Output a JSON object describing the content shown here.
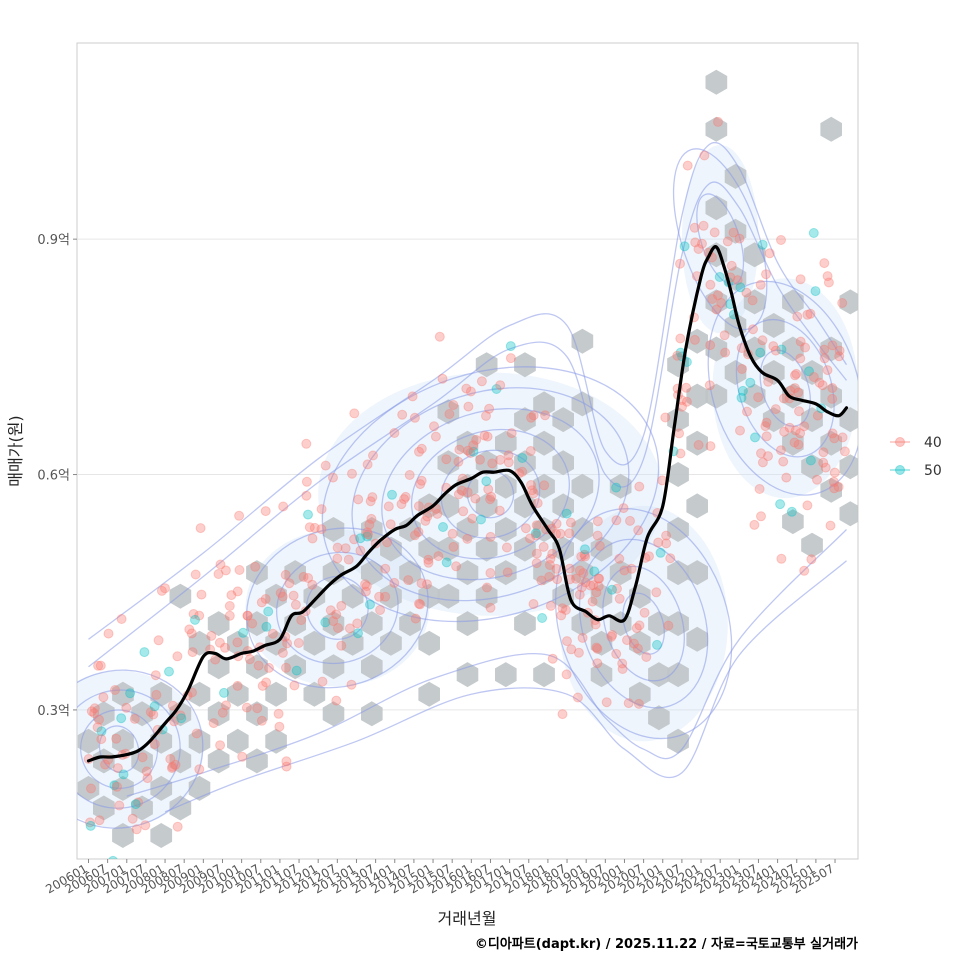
{
  "chart_data": {
    "type": "scatter",
    "layers": [
      "hexbin",
      "density-contour",
      "scatter-points",
      "moving-average-line"
    ],
    "xlabel": "거래년월",
    "ylabel": "매매가(원)",
    "caption": "©디아파트(dapt.kr) / 2025.11.22 / 자료=국토교통부 실거래가",
    "xlim": [
      2005.7,
      2026.1
    ],
    "ylim": [
      0.11,
      1.15
    ],
    "y_ticks": [
      {
        "value": 0.3,
        "label": "0.3억"
      },
      {
        "value": 0.6,
        "label": "0.6억"
      },
      {
        "value": 0.9,
        "label": "0.9억"
      }
    ],
    "x_ticks": [
      "200601",
      "200607",
      "200701",
      "200707",
      "200801",
      "200807",
      "200901",
      "200907",
      "201001",
      "201007",
      "201101",
      "201107",
      "201201",
      "201207",
      "201301",
      "201307",
      "201401",
      "201407",
      "201501",
      "201507",
      "201601",
      "201607",
      "201701",
      "201707",
      "201801",
      "201807",
      "201901",
      "201907",
      "202001",
      "202007",
      "202101",
      "202107",
      "202201",
      "202207",
      "202301",
      "202307",
      "202401",
      "202407",
      "202501",
      "202507"
    ],
    "grid": true,
    "legend": {
      "position": "right",
      "entries": [
        {
          "label": "40",
          "color": "#F8766D"
        },
        {
          "label": "50",
          "color": "#00BFC4"
        }
      ]
    },
    "colors": {
      "hex": "#bfc4c8",
      "contour": "#8899e8",
      "contour_fill": "#cfe2f6",
      "trend": "#000000",
      "series_40": "#F8766D",
      "series_50": "#00BFC4"
    },
    "trend_line": {
      "name": "moving average",
      "x": [
        2006.0,
        2006.3,
        2006.6,
        2007.0,
        2007.3,
        2007.6,
        2008.0,
        2008.3,
        2008.6,
        2009.0,
        2009.3,
        2009.6,
        2010.0,
        2010.3,
        2010.6,
        2011.0,
        2011.3,
        2011.6,
        2012.0,
        2012.3,
        2012.6,
        2013.0,
        2013.3,
        2013.6,
        2014.0,
        2014.3,
        2014.6,
        2015.0,
        2015.3,
        2015.6,
        2016.0,
        2016.3,
        2016.6,
        2017.0,
        2017.3,
        2017.6,
        2018.0,
        2018.3,
        2018.6,
        2019.0,
        2019.3,
        2019.6,
        2020.0,
        2020.3,
        2020.6,
        2021.0,
        2021.3,
        2021.6,
        2022.0,
        2022.2,
        2022.4,
        2022.6,
        2022.8,
        2023.0,
        2023.3,
        2023.6,
        2024.0,
        2024.3,
        2024.6,
        2025.0,
        2025.3,
        2025.6,
        2025.8
      ],
      "y": [
        0.235,
        0.24,
        0.24,
        0.243,
        0.248,
        0.26,
        0.283,
        0.3,
        0.325,
        0.368,
        0.372,
        0.365,
        0.372,
        0.375,
        0.382,
        0.39,
        0.42,
        0.425,
        0.445,
        0.46,
        0.472,
        0.483,
        0.5,
        0.515,
        0.53,
        0.535,
        0.548,
        0.56,
        0.575,
        0.587,
        0.595,
        0.603,
        0.603,
        0.605,
        0.59,
        0.56,
        0.53,
        0.505,
        0.44,
        0.425,
        0.415,
        0.42,
        0.415,
        0.46,
        0.52,
        0.56,
        0.66,
        0.76,
        0.852,
        0.878,
        0.89,
        0.865,
        0.83,
        0.79,
        0.75,
        0.73,
        0.72,
        0.7,
        0.695,
        0.69,
        0.68,
        0.675,
        0.685
      ]
    },
    "hexbins": [
      [
        2006.0,
        0.26
      ],
      [
        2006.0,
        0.2
      ],
      [
        2006.4,
        0.235
      ],
      [
        2006.4,
        0.175
      ],
      [
        2006.9,
        0.26
      ],
      [
        2006.9,
        0.2
      ],
      [
        2006.9,
        0.14
      ],
      [
        2007.4,
        0.235
      ],
      [
        2007.4,
        0.175
      ],
      [
        2007.9,
        0.26
      ],
      [
        2007.9,
        0.2
      ],
      [
        2007.9,
        0.14
      ],
      [
        2006.4,
        0.295
      ],
      [
        2006.9,
        0.32
      ],
      [
        2007.4,
        0.295
      ],
      [
        2007.9,
        0.32
      ],
      [
        2008.4,
        0.295
      ],
      [
        2008.4,
        0.235
      ],
      [
        2008.4,
        0.175
      ],
      [
        2008.9,
        0.26
      ],
      [
        2008.9,
        0.2
      ],
      [
        2008.4,
        0.445
      ],
      [
        2008.9,
        0.385
      ],
      [
        2008.9,
        0.32
      ],
      [
        2009.4,
        0.41
      ],
      [
        2009.4,
        0.355
      ],
      [
        2009.4,
        0.295
      ],
      [
        2009.4,
        0.235
      ],
      [
        2009.9,
        0.385
      ],
      [
        2009.9,
        0.32
      ],
      [
        2009.9,
        0.26
      ],
      [
        2010.4,
        0.475
      ],
      [
        2010.4,
        0.41
      ],
      [
        2010.4,
        0.355
      ],
      [
        2010.4,
        0.295
      ],
      [
        2010.4,
        0.235
      ],
      [
        2010.9,
        0.445
      ],
      [
        2010.9,
        0.385
      ],
      [
        2010.9,
        0.32
      ],
      [
        2010.9,
        0.26
      ],
      [
        2011.4,
        0.475
      ],
      [
        2011.4,
        0.41
      ],
      [
        2011.4,
        0.355
      ],
      [
        2011.9,
        0.445
      ],
      [
        2011.9,
        0.385
      ],
      [
        2011.9,
        0.32
      ],
      [
        2012.4,
        0.53
      ],
      [
        2012.4,
        0.475
      ],
      [
        2012.4,
        0.41
      ],
      [
        2012.4,
        0.355
      ],
      [
        2012.4,
        0.295
      ],
      [
        2012.9,
        0.445
      ],
      [
        2012.9,
        0.385
      ],
      [
        2013.4,
        0.53
      ],
      [
        2013.4,
        0.475
      ],
      [
        2013.4,
        0.41
      ],
      [
        2013.4,
        0.355
      ],
      [
        2013.4,
        0.295
      ],
      [
        2013.9,
        0.505
      ],
      [
        2013.9,
        0.445
      ],
      [
        2013.9,
        0.385
      ],
      [
        2014.4,
        0.53
      ],
      [
        2014.4,
        0.475
      ],
      [
        2014.4,
        0.41
      ],
      [
        2014.9,
        0.56
      ],
      [
        2014.9,
        0.505
      ],
      [
        2014.9,
        0.445
      ],
      [
        2014.9,
        0.385
      ],
      [
        2014.9,
        0.32
      ],
      [
        2015.4,
        0.615
      ],
      [
        2015.4,
        0.56
      ],
      [
        2015.4,
        0.505
      ],
      [
        2015.4,
        0.445
      ],
      [
        2015.9,
        0.64
      ],
      [
        2015.9,
        0.585
      ],
      [
        2015.9,
        0.53
      ],
      [
        2015.9,
        0.475
      ],
      [
        2015.9,
        0.41
      ],
      [
        2015.9,
        0.345
      ],
      [
        2016.4,
        0.615
      ],
      [
        2016.4,
        0.56
      ],
      [
        2016.4,
        0.505
      ],
      [
        2016.4,
        0.445
      ],
      [
        2016.9,
        0.64
      ],
      [
        2016.9,
        0.585
      ],
      [
        2016.9,
        0.53
      ],
      [
        2016.9,
        0.475
      ],
      [
        2016.9,
        0.345
      ],
      [
        2017.4,
        0.67
      ],
      [
        2017.4,
        0.615
      ],
      [
        2017.4,
        0.56
      ],
      [
        2017.4,
        0.505
      ],
      [
        2017.4,
        0.41
      ],
      [
        2017.9,
        0.64
      ],
      [
        2017.9,
        0.585
      ],
      [
        2017.9,
        0.53
      ],
      [
        2017.9,
        0.475
      ],
      [
        2017.9,
        0.345
      ],
      [
        2018.4,
        0.67
      ],
      [
        2018.4,
        0.615
      ],
      [
        2018.4,
        0.56
      ],
      [
        2018.4,
        0.505
      ],
      [
        2018.4,
        0.445
      ],
      [
        2018.9,
        0.585
      ],
      [
        2018.9,
        0.53
      ],
      [
        2018.9,
        0.475
      ],
      [
        2018.9,
        0.41
      ],
      [
        2016.4,
        0.74
      ],
      [
        2017.4,
        0.74
      ],
      [
        2018.9,
        0.77
      ],
      [
        2015.4,
        0.68
      ],
      [
        2017.9,
        0.69
      ],
      [
        2018.9,
        0.69
      ],
      [
        2019.4,
        0.505
      ],
      [
        2019.4,
        0.445
      ],
      [
        2019.4,
        0.385
      ],
      [
        2019.4,
        0.345
      ],
      [
        2019.9,
        0.475
      ],
      [
        2019.9,
        0.41
      ],
      [
        2019.9,
        0.585
      ],
      [
        2020.4,
        0.445
      ],
      [
        2020.4,
        0.385
      ],
      [
        2020.4,
        0.32
      ],
      [
        2020.9,
        0.41
      ],
      [
        2020.9,
        0.345
      ],
      [
        2020.9,
        0.29
      ],
      [
        2021.4,
        0.53
      ],
      [
        2021.4,
        0.475
      ],
      [
        2021.4,
        0.41
      ],
      [
        2021.4,
        0.345
      ],
      [
        2021.4,
        0.26
      ],
      [
        2021.4,
        0.6
      ],
      [
        2021.4,
        0.67
      ],
      [
        2021.4,
        0.74
      ],
      [
        2021.9,
        0.64
      ],
      [
        2021.9,
        0.7
      ],
      [
        2021.9,
        0.77
      ],
      [
        2021.9,
        0.56
      ],
      [
        2021.9,
        0.475
      ],
      [
        2021.9,
        0.39
      ],
      [
        2022.4,
        0.82
      ],
      [
        2022.4,
        0.76
      ],
      [
        2022.4,
        0.7
      ],
      [
        2022.4,
        0.88
      ],
      [
        2022.4,
        0.94
      ],
      [
        2022.4,
        1.04
      ],
      [
        2022.4,
        1.1
      ],
      [
        2022.9,
        0.85
      ],
      [
        2022.9,
        0.79
      ],
      [
        2022.9,
        0.73
      ],
      [
        2022.9,
        0.91
      ],
      [
        2022.9,
        0.98
      ],
      [
        2023.4,
        0.88
      ],
      [
        2023.4,
        0.82
      ],
      [
        2023.4,
        0.76
      ],
      [
        2023.4,
        0.7
      ],
      [
        2023.9,
        0.79
      ],
      [
        2023.9,
        0.73
      ],
      [
        2023.9,
        0.67
      ],
      [
        2024.4,
        0.82
      ],
      [
        2024.4,
        0.76
      ],
      [
        2024.4,
        0.7
      ],
      [
        2024.4,
        0.64
      ],
      [
        2024.4,
        0.54
      ],
      [
        2024.9,
        0.73
      ],
      [
        2024.9,
        0.67
      ],
      [
        2024.9,
        0.61
      ],
      [
        2024.9,
        0.51
      ],
      [
        2025.4,
        0.76
      ],
      [
        2025.4,
        0.7
      ],
      [
        2025.4,
        0.64
      ],
      [
        2025.4,
        0.58
      ],
      [
        2025.4,
        1.04
      ],
      [
        2025.9,
        0.82
      ],
      [
        2025.9,
        0.67
      ],
      [
        2025.9,
        0.61
      ],
      [
        2025.9,
        0.55
      ]
    ],
    "contour_ellipses": [
      {
        "cx": 2016.5,
        "cy": 0.575,
        "rx": [
          0.6,
          1.3,
          2.1,
          2.9,
          3.7,
          4.5
        ],
        "ry": [
          0.03,
          0.055,
          0.08,
          0.105,
          0.13,
          0.155
        ]
      },
      {
        "cx": 2006.8,
        "cy": 0.25,
        "rx": [
          0.5,
          1.0,
          1.6,
          2.2
        ],
        "ry": [
          0.03,
          0.05,
          0.075,
          0.1
        ]
      },
      {
        "cx": 2020.5,
        "cy": 0.41,
        "rx": [
          0.5,
          1.0,
          1.6,
          2.2
        ],
        "ry": [
          0.04,
          0.075,
          0.11,
          0.15
        ]
      },
      {
        "cx": 2012.5,
        "cy": 0.43,
        "rx": [
          0.8,
          1.6,
          2.4
        ],
        "ry": [
          0.04,
          0.07,
          0.1
        ]
      },
      {
        "cx": 2024.2,
        "cy": 0.71,
        "rx": [
          0.6,
          1.2,
          1.9
        ],
        "ry": [
          0.05,
          0.09,
          0.14
        ]
      },
      {
        "cx": 2022.5,
        "cy": 0.9,
        "rx": [
          0.5,
          1.0
        ],
        "ry": [
          0.06,
          0.12
        ]
      }
    ],
    "contour_outer": [
      {
        "x": [
          2006.0,
          2009,
          2012,
          2015,
          2017,
          2018.5,
          2019.5,
          2020.5,
          2021.5,
          2022.2,
          2023.0,
          2024.0,
          2025.0,
          2025.8
        ],
        "y": [
          0.39,
          0.5,
          0.62,
          0.72,
          0.79,
          0.79,
          0.63,
          0.65,
          0.93,
          1.02,
          0.99,
          0.87,
          0.8,
          0.74
        ]
      },
      {
        "x": [
          2006.0,
          2009,
          2012,
          2015,
          2017,
          2018.5,
          2019.5,
          2020.5,
          2021.5,
          2022.2,
          2023.0,
          2024.0,
          2025.0,
          2025.8
        ],
        "y": [
          0.355,
          0.47,
          0.59,
          0.69,
          0.76,
          0.75,
          0.6,
          0.62,
          0.88,
          0.97,
          0.94,
          0.84,
          0.77,
          0.72
        ]
      },
      {
        "x": [
          2007.0,
          2009,
          2012,
          2015,
          2018,
          2019.5,
          2020.5,
          2021.5,
          2023,
          2025.8
        ],
        "y": [
          0.19,
          0.22,
          0.27,
          0.34,
          0.37,
          0.29,
          0.25,
          0.25,
          0.39,
          0.53
        ]
      },
      {
        "x": [
          2008.0,
          2010,
          2013,
          2016,
          2018.5,
          2020,
          2021.5,
          2023,
          2025.8
        ],
        "y": [
          0.17,
          0.21,
          0.26,
          0.32,
          0.32,
          0.25,
          0.22,
          0.37,
          0.49
        ]
      }
    ]
  }
}
